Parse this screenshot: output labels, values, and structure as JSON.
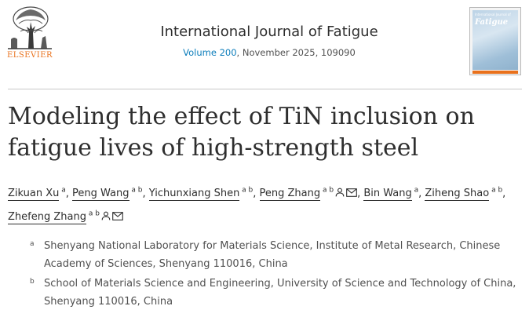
{
  "header": {
    "publisher_logo_text": "ELSEVIER",
    "journal_title": "International Journal of Fatigue",
    "volume_link": "Volume 200",
    "issue_info": ", November 2025, 109090",
    "cover_small_text": "International Journal of",
    "cover_title": "Fatigue"
  },
  "article": {
    "title": "Modeling the effect of TiN inclusion on fatigue lives of high-strength steel"
  },
  "authors": [
    {
      "name": "Zikuan Xu",
      "sup": "a",
      "icons": []
    },
    {
      "name": "Peng Wang",
      "sup": "a b",
      "icons": []
    },
    {
      "name": "Yichunxiang Shen",
      "sup": "a b",
      "icons": []
    },
    {
      "name": "Peng Zhang",
      "sup": "a b",
      "icons": [
        "person-icon",
        "envelope-icon"
      ]
    },
    {
      "name": "Bin Wang",
      "sup": "a",
      "icons": []
    },
    {
      "name": "Ziheng Shao",
      "sup": "a b",
      "icons": []
    },
    {
      "name": "Zhefeng Zhang",
      "sup": "a b",
      "icons": [
        "person-icon",
        "envelope-icon"
      ]
    }
  ],
  "affiliations": [
    {
      "label": "a",
      "text": "Shenyang National Laboratory for Materials Science, Institute of Metal Research, Chinese Academy of Sciences, Shenyang 110016, China"
    },
    {
      "label": "b",
      "text": "School of Materials Science and Engineering, University of Science and Technology of China, Shenyang 110016, China"
    }
  ],
  "colors": {
    "link": "#0c7dbb",
    "elsevier_orange": "#e9711c",
    "text": "#2e2e2e"
  }
}
